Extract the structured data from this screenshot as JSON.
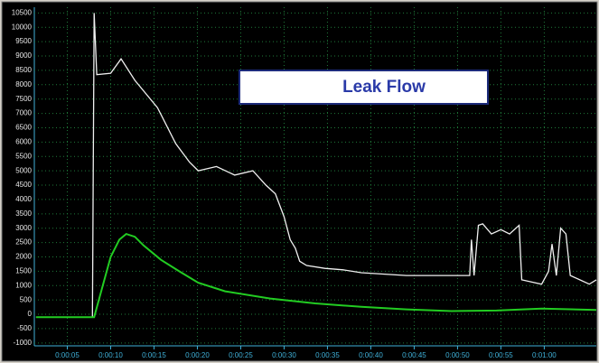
{
  "chart_data": {
    "type": "line",
    "annotation": "Leak Flow",
    "xlim": [
      1.2,
      66
    ],
    "ylim": [
      -1100,
      10700
    ],
    "xticks": [
      {
        "value": 5,
        "label": "0:00:05"
      },
      {
        "value": 10,
        "label": "0:00:10"
      },
      {
        "value": 15,
        "label": "0:00:15"
      },
      {
        "value": 20,
        "label": "0:00:20"
      },
      {
        "value": 25,
        "label": "0:00:25"
      },
      {
        "value": 30,
        "label": "0:00:30"
      },
      {
        "value": 35,
        "label": "0:00:35"
      },
      {
        "value": 40,
        "label": "0:00:40"
      },
      {
        "value": 45,
        "label": "0:00:45"
      },
      {
        "value": 50,
        "label": "0:00:50"
      },
      {
        "value": 55,
        "label": "0:00:55"
      },
      {
        "value": 60,
        "label": "0:01:00"
      }
    ],
    "yticks": [
      -1000,
      -500,
      0,
      500,
      1000,
      1500,
      2000,
      2500,
      3000,
      3500,
      4000,
      4500,
      5000,
      5500,
      6000,
      6500,
      7000,
      7500,
      8000,
      8500,
      9000,
      9500,
      10000,
      10500
    ],
    "grid": true,
    "series": [
      {
        "color": "#f0f0f0",
        "x": [
          1.4,
          7.9,
          8.1,
          8.4,
          10.0,
          11.2,
          12.8,
          15.4,
          17.5,
          19.1,
          20.1,
          22.2,
          24.3,
          26.4,
          27.9,
          29.0,
          30.0,
          30.7,
          31.3,
          31.8,
          32.6,
          34.7,
          36.8,
          38.9,
          44.1,
          49.3,
          51.4,
          51.6,
          51.9,
          52.4,
          52.9,
          53.9,
          55.0,
          56.0,
          57.1,
          57.4,
          59.7,
          60.5,
          60.9,
          61.4,
          61.9,
          62.5,
          63.0,
          64.1,
          65.2,
          66.0
        ],
        "values": [
          -100,
          -100,
          10500,
          8350,
          8400,
          8900,
          8150,
          7200,
          5950,
          5300,
          5000,
          5150,
          4850,
          5000,
          4500,
          4200,
          3400,
          2600,
          2300,
          1850,
          1700,
          1600,
          1550,
          1450,
          1350,
          1350,
          1350,
          2600,
          1350,
          3100,
          3150,
          2800,
          2950,
          2800,
          3100,
          1200,
          1050,
          1500,
          2450,
          1350,
          3000,
          2800,
          1350,
          1200,
          1050,
          1200
        ]
      },
      {
        "color": "#22cc22",
        "x": [
          1.4,
          8.1,
          9.0,
          10.0,
          11.0,
          11.8,
          12.8,
          13.8,
          15.8,
          17.9,
          20.1,
          23.2,
          28.4,
          33.6,
          38.9,
          44.1,
          49.3,
          54.5,
          59.7,
          66.0
        ],
        "values": [
          -100,
          -100,
          900,
          2000,
          2600,
          2800,
          2700,
          2400,
          1900,
          1500,
          1100,
          800,
          550,
          380,
          260,
          170,
          110,
          130,
          200,
          150
        ]
      }
    ]
  }
}
